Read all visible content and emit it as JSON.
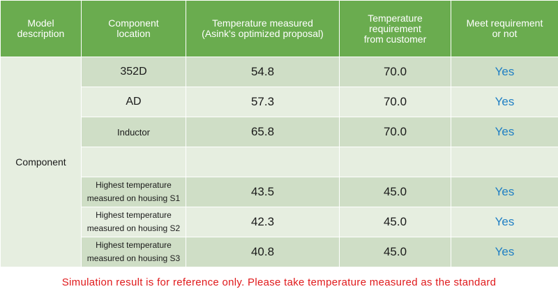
{
  "headers": {
    "model": [
      "Model",
      "description"
    ],
    "location": [
      "Component",
      "location"
    ],
    "measured": [
      "Temperature measured",
      "(Asink's optimized proposal)"
    ],
    "requirement": [
      "Temperature",
      "requirement",
      "from customer"
    ],
    "meet": [
      "Meet requirement",
      "or not"
    ]
  },
  "model_description": "Component",
  "rows": [
    {
      "location": [
        "352D"
      ],
      "measured": "54.8",
      "requirement": "70.0",
      "meet": "Yes"
    },
    {
      "location": [
        "AD"
      ],
      "measured": "57.3",
      "requirement": "70.0",
      "meet": "Yes"
    },
    {
      "location": [
        "Inductor"
      ],
      "measured": "65.8",
      "requirement": "70.0",
      "meet": "Yes"
    },
    {
      "location": [
        ""
      ],
      "measured": "",
      "requirement": "",
      "meet": ""
    },
    {
      "location": [
        "Highest temperature",
        "measured on housing S1"
      ],
      "measured": "43.5",
      "requirement": "45.0",
      "meet": "Yes"
    },
    {
      "location": [
        "Highest temperature",
        "measured on housing S2"
      ],
      "measured": "42.3",
      "requirement": "45.0",
      "meet": "Yes"
    },
    {
      "location": [
        "Highest temperature",
        "measured on housing S3"
      ],
      "measured": "40.8",
      "requirement": "45.0",
      "meet": "Yes"
    }
  ],
  "footnote": "Simulation result is for reference only. Please take temperature measured as the standard",
  "colors": {
    "header_bg": "#6aac4f",
    "row_dark": "#cfdec6",
    "row_light": "#e6eee0",
    "yes_text": "#1f7fc4",
    "footnote_text": "#e0191b"
  }
}
